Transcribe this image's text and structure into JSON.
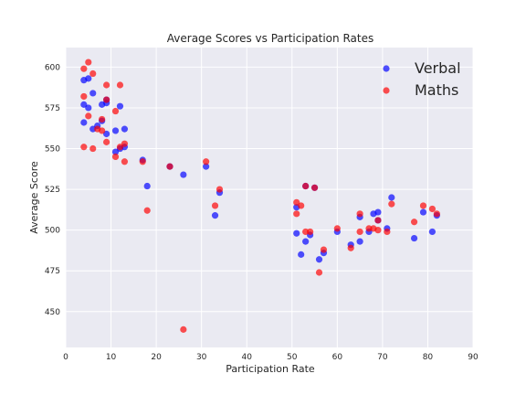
{
  "chart_data": {
    "type": "scatter",
    "title": "Average Scores vs Participation Rates",
    "xlabel": "Participation Rate",
    "ylabel": "Average Score",
    "xlim": [
      0,
      90
    ],
    "ylim": [
      428,
      612
    ],
    "xticks": [
      0,
      10,
      20,
      30,
      40,
      50,
      60,
      70,
      80,
      90
    ],
    "yticks": [
      450,
      475,
      500,
      525,
      550,
      575,
      600
    ],
    "grid": true,
    "legend": "top-right",
    "series": [
      {
        "name": "Verbal",
        "color": "#0000ff",
        "points": [
          [
            4,
            592
          ],
          [
            5,
            593
          ],
          [
            4,
            577
          ],
          [
            5,
            575
          ],
          [
            4,
            566
          ],
          [
            6,
            562
          ],
          [
            6,
            584
          ],
          [
            7,
            564
          ],
          [
            8,
            567
          ],
          [
            8,
            577
          ],
          [
            9,
            580
          ],
          [
            9,
            578
          ],
          [
            9,
            559
          ],
          [
            11,
            561
          ],
          [
            11,
            548
          ],
          [
            12,
            550
          ],
          [
            12,
            576
          ],
          [
            13,
            562
          ],
          [
            13,
            551
          ],
          [
            17,
            543
          ],
          [
            18,
            527
          ],
          [
            23,
            539
          ],
          [
            26,
            534
          ],
          [
            31,
            539
          ],
          [
            33,
            509
          ],
          [
            34,
            523
          ],
          [
            51,
            498
          ],
          [
            51,
            514
          ],
          [
            52,
            485
          ],
          [
            53,
            527
          ],
          [
            53,
            493
          ],
          [
            54,
            497
          ],
          [
            55,
            526
          ],
          [
            56,
            482
          ],
          [
            57,
            486
          ],
          [
            60,
            499
          ],
          [
            63,
            491
          ],
          [
            65,
            508
          ],
          [
            65,
            493
          ],
          [
            67,
            499
          ],
          [
            68,
            510
          ],
          [
            69,
            511
          ],
          [
            69,
            506
          ],
          [
            71,
            501
          ],
          [
            72,
            520
          ],
          [
            77,
            495
          ],
          [
            79,
            511
          ],
          [
            81,
            499
          ],
          [
            82,
            509
          ]
        ]
      },
      {
        "name": "Maths",
        "color": "#ff0000",
        "points": [
          [
            4,
            599
          ],
          [
            4,
            582
          ],
          [
            4,
            551
          ],
          [
            5,
            603
          ],
          [
            5,
            570
          ],
          [
            6,
            596
          ],
          [
            6,
            550
          ],
          [
            7,
            562
          ],
          [
            8,
            568
          ],
          [
            8,
            561
          ],
          [
            9,
            589
          ],
          [
            9,
            580
          ],
          [
            9,
            554
          ],
          [
            11,
            573
          ],
          [
            11,
            545
          ],
          [
            12,
            589
          ],
          [
            12,
            551
          ],
          [
            13,
            553
          ],
          [
            13,
            542
          ],
          [
            17,
            542
          ],
          [
            18,
            512
          ],
          [
            23,
            539
          ],
          [
            26,
            439
          ],
          [
            31,
            542
          ],
          [
            33,
            515
          ],
          [
            34,
            525
          ],
          [
            51,
            510
          ],
          [
            51,
            517
          ],
          [
            52,
            515
          ],
          [
            53,
            499
          ],
          [
            53,
            527
          ],
          [
            54,
            499
          ],
          [
            55,
            526
          ],
          [
            56,
            474
          ],
          [
            57,
            488
          ],
          [
            60,
            501
          ],
          [
            63,
            489
          ],
          [
            65,
            499
          ],
          [
            65,
            510
          ],
          [
            67,
            501
          ],
          [
            68,
            501
          ],
          [
            69,
            506
          ],
          [
            69,
            500
          ],
          [
            71,
            499
          ],
          [
            72,
            516
          ],
          [
            77,
            505
          ],
          [
            79,
            515
          ],
          [
            81,
            513
          ],
          [
            82,
            510
          ]
        ]
      }
    ]
  }
}
